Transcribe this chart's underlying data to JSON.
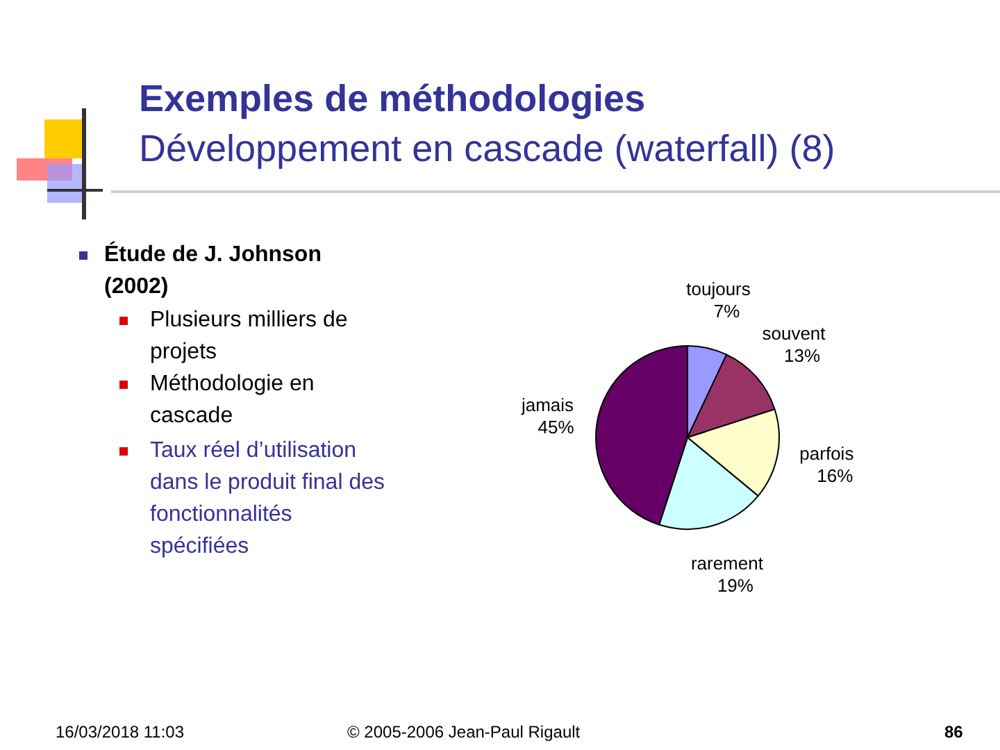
{
  "chart_data": {
    "type": "pie",
    "title": "Exemples de méthodologies",
    "subtitle": "Développement en cascade (waterfall) (8)",
    "categories": [
      "toujours",
      "souvent",
      "parfois",
      "rarement",
      "jamais"
    ],
    "values": [
      7,
      13,
      16,
      19,
      45
    ],
    "value_labels": [
      "7%",
      "13%",
      "16%",
      "19%",
      "45%"
    ],
    "colors": [
      "#9999ff",
      "#993366",
      "#ffffcc",
      "#ccffff",
      "#660066"
    ],
    "legend": false,
    "annotations": [
      "Étude de J. Johnson (2002)",
      "Plusieurs milliers de projets",
      "Méthodologie en cascade",
      "Taux réel d’utilisation dans le produit final des fonctionnalités spécifiées",
      "16/03/2018 11:03",
      "© 2005-2006 Jean-Paul Rigault",
      "86"
    ]
  }
}
